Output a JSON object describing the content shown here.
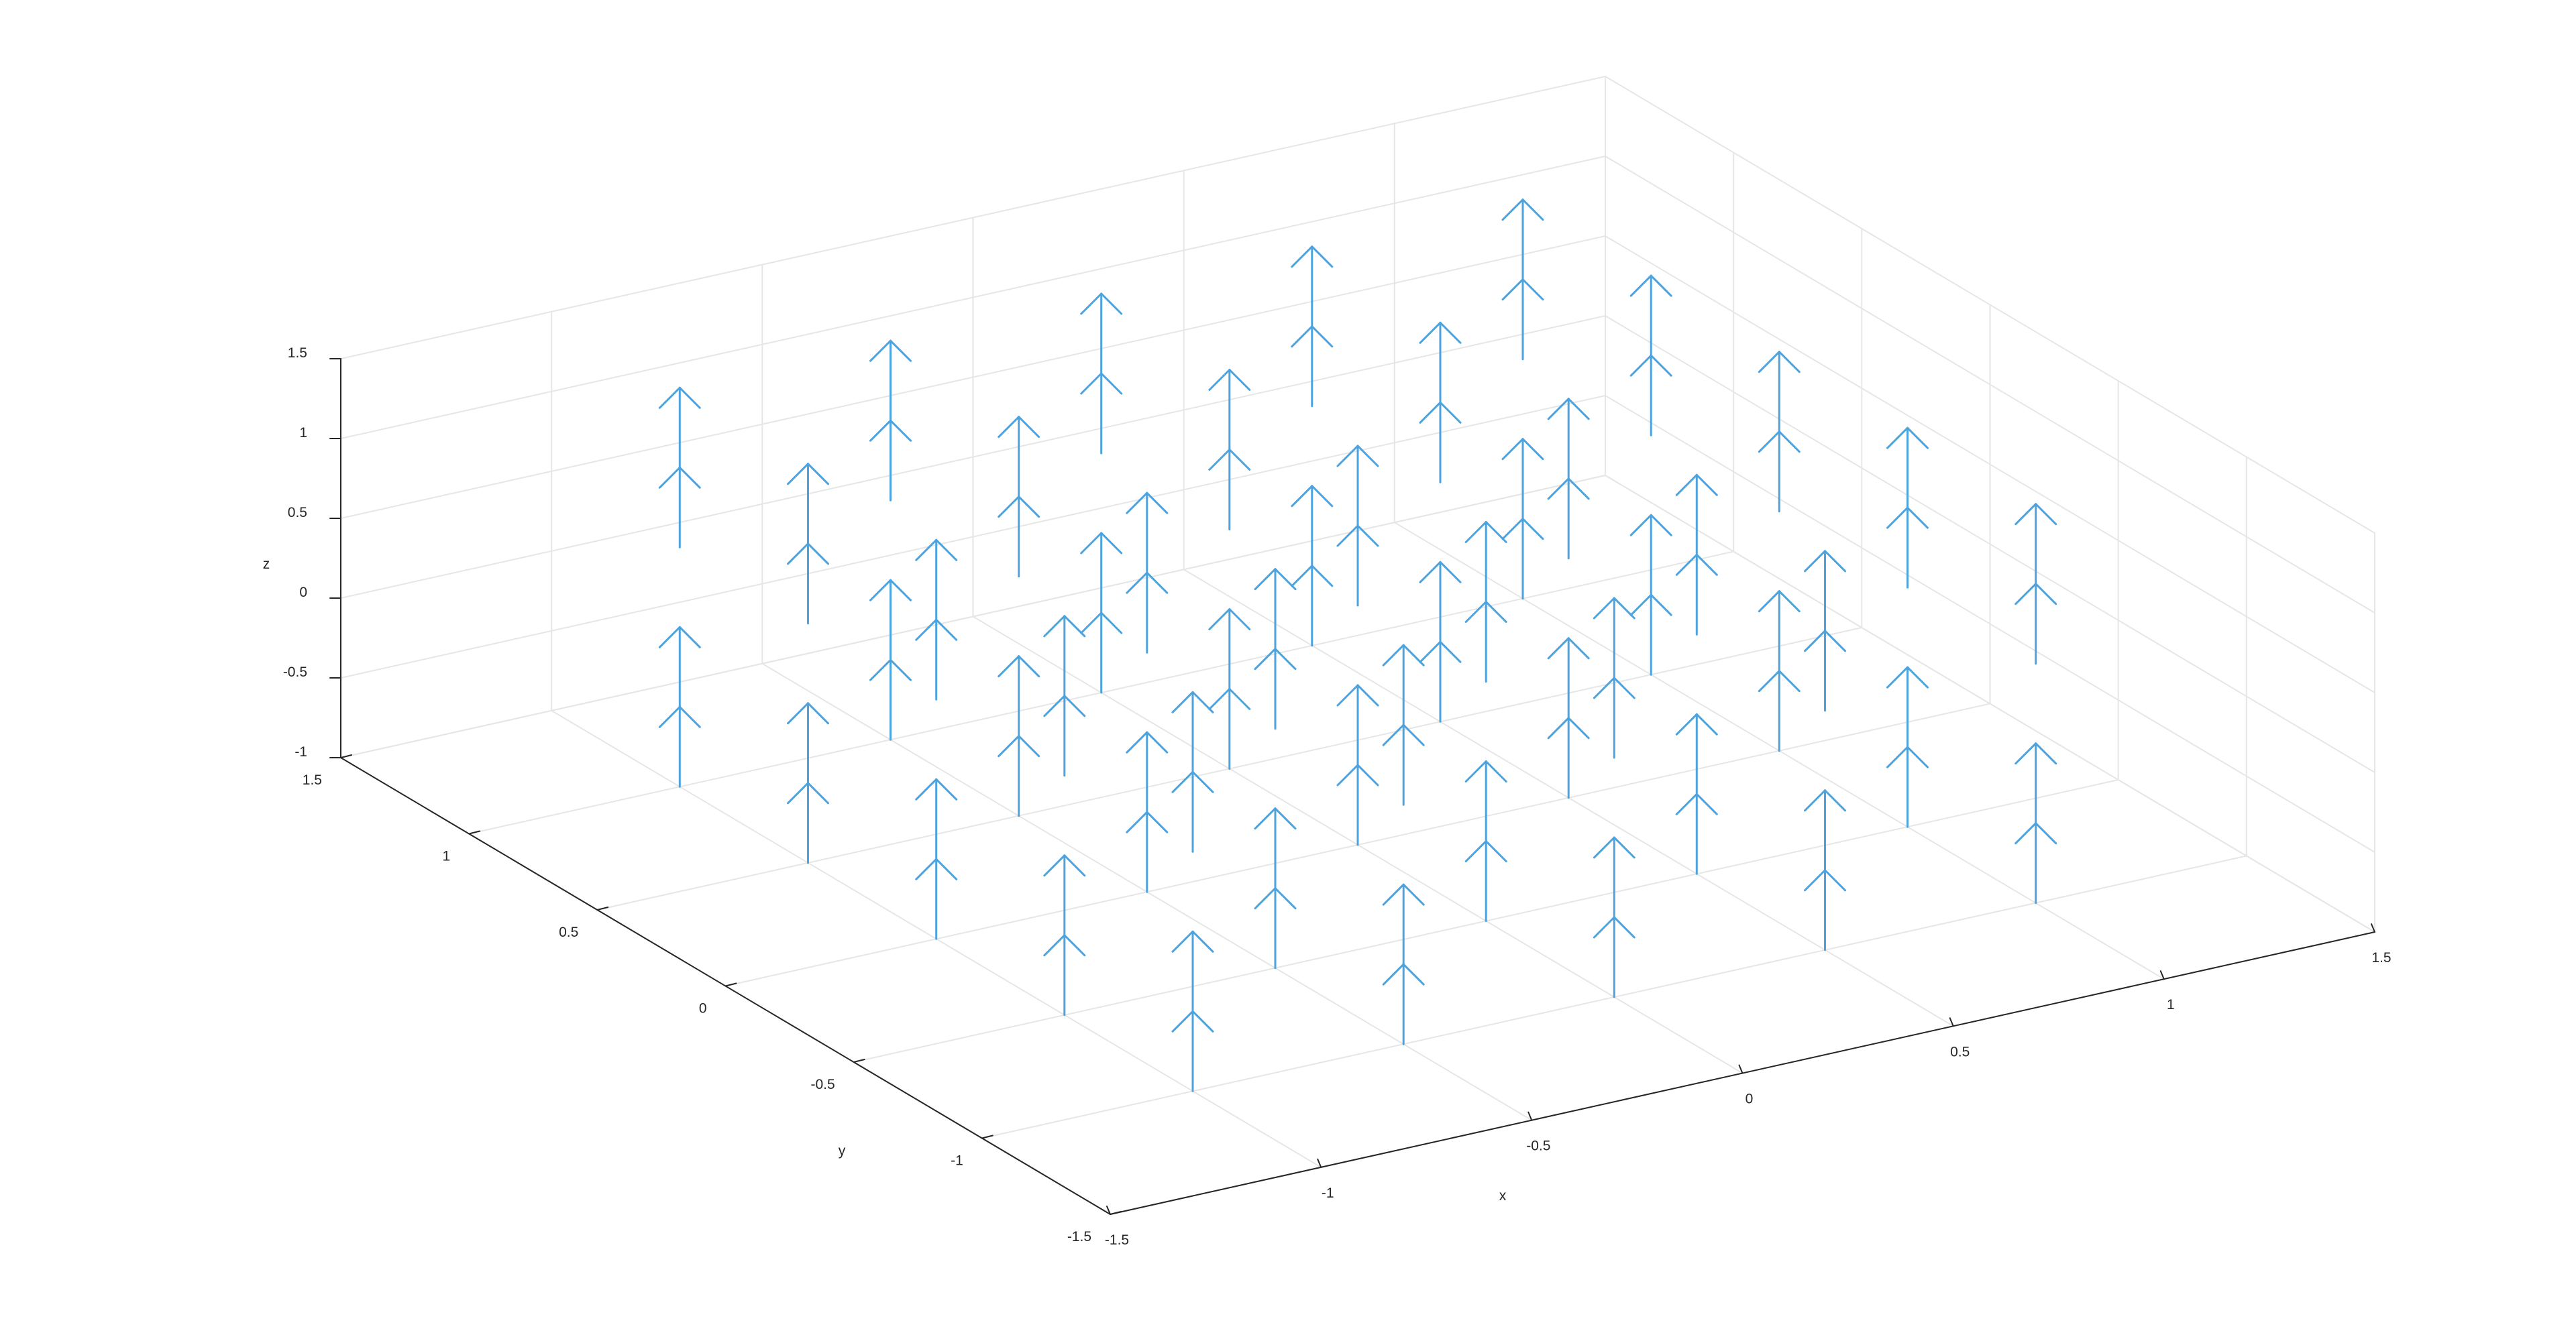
{
  "chart_data": {
    "type": "quiver3",
    "title": "",
    "xlabel": "x",
    "ylabel": "y",
    "zlabel": "z",
    "xlim": [
      -1.5,
      1.5
    ],
    "ylim": [
      -1.5,
      1.5
    ],
    "zlim": [
      -1,
      1.5
    ],
    "xticks": [
      "-1.5",
      "-1",
      "-0.5",
      "0",
      "0.5",
      "1",
      "1.5"
    ],
    "yticks": [
      "-1.5",
      "-1",
      "-0.5",
      "0",
      "0.5",
      "1",
      "1.5"
    ],
    "zticks": [
      "-1",
      "-0.5",
      "0",
      "0.5",
      "1",
      "1.5"
    ],
    "grid": true,
    "x": [
      -1,
      -0.5,
      0,
      0.5,
      1
    ],
    "y": [
      -1,
      -0.5,
      0,
      0.5,
      1
    ],
    "z": [
      -1,
      -0.5,
      0.5,
      1
    ],
    "vector": [
      0,
      0,
      1
    ],
    "arrow_length_z": 0.5,
    "arrow_color": "#4DA3DD",
    "axis_color": "#262626",
    "grid_color": "#E6E6E6"
  }
}
